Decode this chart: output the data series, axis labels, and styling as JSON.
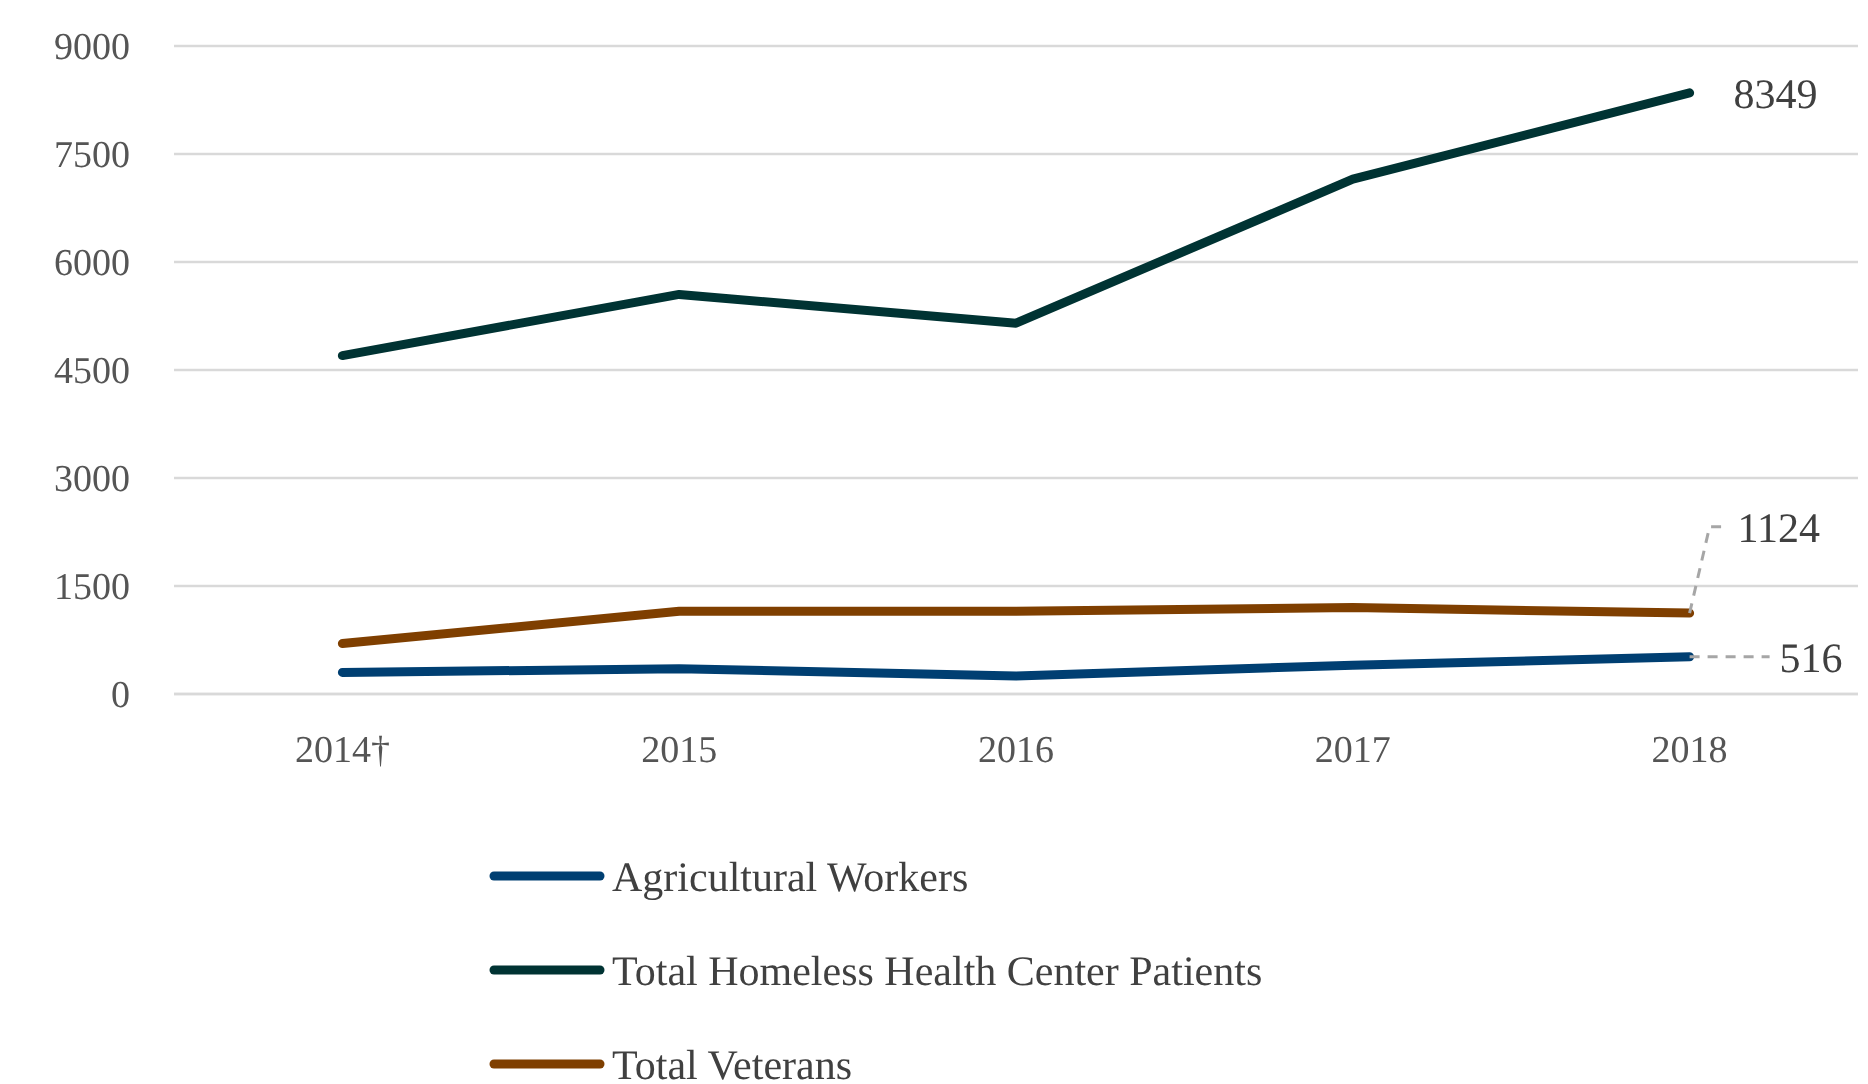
{
  "chart_data": {
    "type": "line",
    "categories": [
      "2014†",
      "2015",
      "2016",
      "2017",
      "2018"
    ],
    "ylim": [
      0,
      9000
    ],
    "yticks": [
      0,
      1500,
      3000,
      4500,
      6000,
      7500,
      9000
    ],
    "grid": "y",
    "legend": "bottom",
    "line_style": "solid",
    "marker": "none",
    "series": [
      {
        "name": "Agricultural Workers",
        "color": "#003f72",
        "values": [
          300,
          350,
          250,
          400,
          516
        ],
        "value_labels": [
          null,
          null,
          null,
          null,
          "516"
        ]
      },
      {
        "name": "Total Homeless Health Center Patients",
        "color": "#003333",
        "values": [
          4700,
          5550,
          5150,
          7150,
          8349
        ],
        "value_labels": [
          null,
          null,
          null,
          null,
          "8349"
        ]
      },
      {
        "name": "Total Veterans",
        "color": "#7f3f00",
        "values": [
          700,
          1150,
          1150,
          1200,
          1124
        ],
        "value_labels": [
          null,
          null,
          null,
          null,
          "1124"
        ]
      }
    ]
  }
}
